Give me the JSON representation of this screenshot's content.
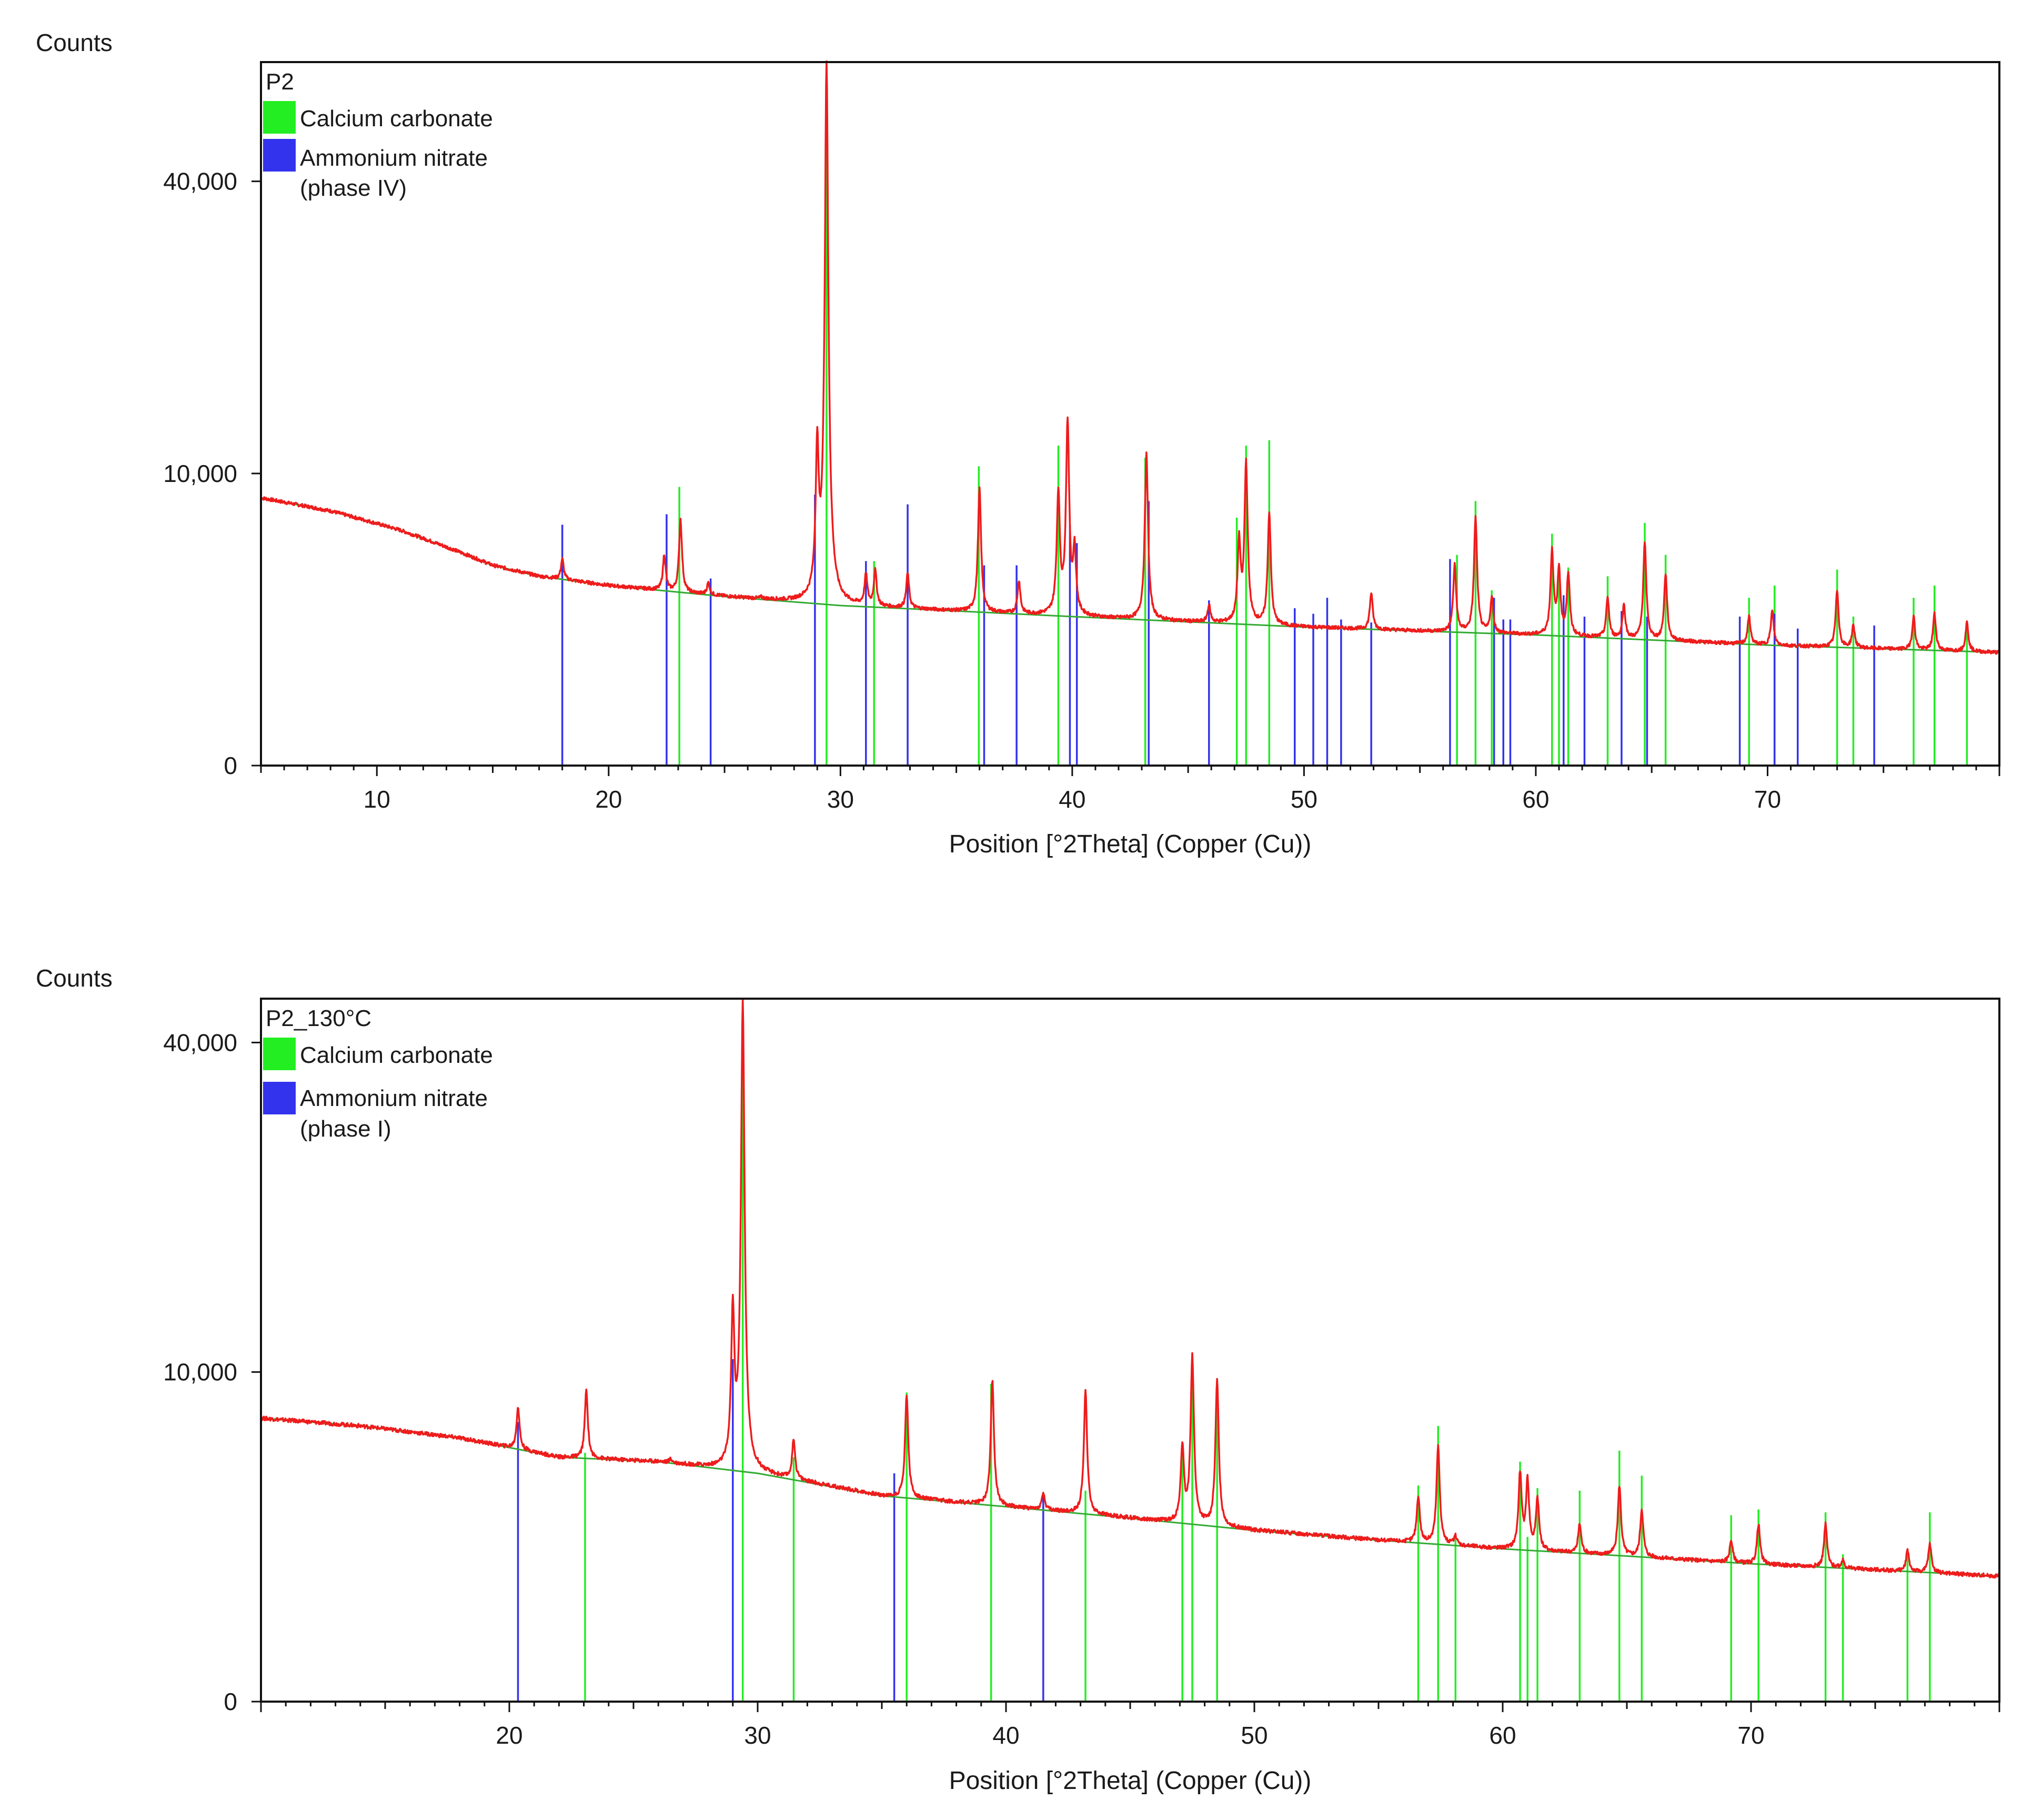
{
  "chart_data": [
    {
      "type": "line",
      "panel": "top",
      "title": "P2",
      "ylabel": "Counts",
      "xlabel": "Position [°2Theta] (Copper (Cu))",
      "xlim": [
        5,
        80
      ],
      "y_scale": "sqrt",
      "ylim": [
        0,
        58000
      ],
      "x_ticks": [
        10,
        20,
        30,
        40,
        50,
        60,
        70
      ],
      "y_ticks": [
        0,
        10000,
        40000
      ],
      "y_tick_labels": [
        "0",
        "10,000",
        "40,000"
      ],
      "legend": [
        {
          "label": "Calcium carbonate",
          "color": "#22ee22"
        },
        {
          "label": "Ammonium nitrate",
          "label2": "(phase IV)",
          "color": "#3333ee"
        }
      ],
      "background": [
        [
          5,
          8400
        ],
        [
          8,
          7600
        ],
        [
          11,
          6500
        ],
        [
          13,
          5600
        ],
        [
          15,
          4700
        ],
        [
          17,
          4200
        ],
        [
          20,
          3800
        ],
        [
          25,
          3350
        ],
        [
          30,
          3000
        ],
        [
          35,
          2800
        ],
        [
          40,
          2600
        ],
        [
          50,
          2250
        ],
        [
          60,
          2000
        ],
        [
          70,
          1700
        ],
        [
          80,
          1500
        ]
      ],
      "observed_peaks": [
        [
          18.0,
          5000
        ],
        [
          22.4,
          5200
        ],
        [
          23.1,
          7100
        ],
        [
          24.3,
          3900
        ],
        [
          26.6,
          3300
        ],
        [
          29.0,
          11700
        ],
        [
          29.4,
          58000
        ],
        [
          31.1,
          4200
        ],
        [
          31.5,
          4400
        ],
        [
          32.9,
          4300
        ],
        [
          36.0,
          9000
        ],
        [
          37.7,
          4000
        ],
        [
          39.4,
          8800
        ],
        [
          39.8,
          14000
        ],
        [
          40.1,
          5400
        ],
        [
          43.2,
          11400
        ],
        [
          45.9,
          3000
        ],
        [
          47.2,
          5900
        ],
        [
          47.5,
          10800
        ],
        [
          48.5,
          7500
        ],
        [
          52.9,
          3500
        ],
        [
          56.5,
          4700
        ],
        [
          57.4,
          7200
        ],
        [
          58.1,
          3300
        ],
        [
          60.7,
          5400
        ],
        [
          61.0,
          4500
        ],
        [
          61.4,
          4300
        ],
        [
          63.1,
          3300
        ],
        [
          63.8,
          3000
        ],
        [
          64.7,
          5800
        ],
        [
          65.6,
          4300
        ],
        [
          69.2,
          2600
        ],
        [
          70.2,
          2800
        ],
        [
          73.0,
          3600
        ],
        [
          73.7,
          2300
        ],
        [
          76.3,
          2600
        ],
        [
          77.2,
          2700
        ],
        [
          78.6,
          2400
        ]
      ],
      "reference_series": [
        {
          "name": "Calcium carbonate",
          "color": "#22ee22",
          "lines": [
            [
              23.05,
              9100
            ],
            [
              29.4,
              57000
            ],
            [
              31.45,
              4900
            ],
            [
              35.97,
              10500
            ],
            [
              39.4,
              12000
            ],
            [
              43.15,
              11100
            ],
            [
              47.1,
              7200
            ],
            [
              47.5,
              12000
            ],
            [
              48.5,
              12400
            ],
            [
              56.6,
              5200
            ],
            [
              57.4,
              8200
            ],
            [
              58.1,
              3600
            ],
            [
              60.7,
              6300
            ],
            [
              61.0,
              4600
            ],
            [
              61.4,
              4600
            ],
            [
              63.1,
              4200
            ],
            [
              64.7,
              6900
            ],
            [
              65.6,
              5200
            ],
            [
              69.2,
              3300
            ],
            [
              70.3,
              3800
            ],
            [
              73.0,
              4500
            ],
            [
              73.7,
              2600
            ],
            [
              76.3,
              3300
            ],
            [
              77.2,
              3800
            ],
            [
              78.6,
              2300
            ]
          ]
        },
        {
          "name": "Ammonium nitrate (phase IV)",
          "color": "#3333ee",
          "lines": [
            [
              18.0,
              6800
            ],
            [
              22.5,
              7400
            ],
            [
              24.4,
              4100
            ],
            [
              28.9,
              8600
            ],
            [
              31.1,
              4900
            ],
            [
              32.9,
              8000
            ],
            [
              36.2,
              4700
            ],
            [
              37.6,
              4700
            ],
            [
              39.9,
              6800
            ],
            [
              40.2,
              5800
            ],
            [
              43.3,
              8200
            ],
            [
              45.9,
              3200
            ],
            [
              49.6,
              2900
            ],
            [
              50.4,
              2700
            ],
            [
              51.0,
              3300
            ],
            [
              51.6,
              2500
            ],
            [
              52.9,
              2400
            ],
            [
              56.3,
              5000
            ],
            [
              58.2,
              3300
            ],
            [
              58.6,
              2500
            ],
            [
              58.9,
              2500
            ],
            [
              61.2,
              3400
            ],
            [
              62.1,
              2600
            ],
            [
              63.7,
              2800
            ],
            [
              64.8,
              2600
            ],
            [
              68.8,
              2600
            ],
            [
              70.3,
              2700
            ],
            [
              71.3,
              2200
            ],
            [
              74.6,
              2300
            ]
          ]
        }
      ]
    },
    {
      "type": "line",
      "panel": "bottom",
      "title": "P2_130°C",
      "ylabel": "Counts",
      "xlabel": "Position [°2Theta] (Copper (Cu))",
      "xlim": [
        10,
        80
      ],
      "y_scale": "sqrt",
      "ylim": [
        0,
        45500
      ],
      "x_ticks": [
        20,
        30,
        40,
        50,
        60,
        70
      ],
      "y_ticks": [
        0,
        10000,
        40000
      ],
      "y_tick_labels": [
        "0",
        "10,000",
        "40,000"
      ],
      "legend": [
        {
          "label": "Calcium carbonate",
          "color": "#22ee22"
        },
        {
          "label": "Ammonium nitrate",
          "label2": "(phase I)",
          "color": "#3333ee"
        }
      ],
      "background": [
        [
          10,
          7400
        ],
        [
          14,
          7000
        ],
        [
          18,
          6400
        ],
        [
          22,
          5500
        ],
        [
          26,
          5300
        ],
        [
          30,
          4800
        ],
        [
          35,
          3900
        ],
        [
          40,
          3500
        ],
        [
          45,
          3100
        ],
        [
          50,
          2700
        ],
        [
          55,
          2400
        ],
        [
          60,
          2150
        ],
        [
          65,
          1950
        ],
        [
          70,
          1750
        ],
        [
          75,
          1600
        ],
        [
          80,
          1450
        ]
      ],
      "observed_peaks": [
        [
          20.35,
          8000
        ],
        [
          23.1,
          8900
        ],
        [
          26.5,
          5400
        ],
        [
          29.0,
          14000
        ],
        [
          29.4,
          45000
        ],
        [
          31.45,
          6300
        ],
        [
          36.0,
          8700
        ],
        [
          39.45,
          9500
        ],
        [
          41.5,
          4000
        ],
        [
          43.2,
          8900
        ],
        [
          47.1,
          6000
        ],
        [
          47.5,
          11000
        ],
        [
          48.5,
          9500
        ],
        [
          56.6,
          3900
        ],
        [
          57.4,
          6000
        ],
        [
          58.1,
          2500
        ],
        [
          60.7,
          4800
        ],
        [
          61.0,
          4500
        ],
        [
          61.4,
          3800
        ],
        [
          63.1,
          2900
        ],
        [
          64.7,
          4300
        ],
        [
          65.6,
          3400
        ],
        [
          69.2,
          2400
        ],
        [
          70.3,
          2900
        ],
        [
          73.0,
          2900
        ],
        [
          73.7,
          1850
        ],
        [
          76.3,
          2100
        ],
        [
          77.2,
          2300
        ]
      ],
      "reference_series": [
        {
          "name": "Calcium carbonate",
          "color": "#22ee22",
          "lines": [
            [
              23.05,
              5700
            ],
            [
              29.4,
              45500
            ],
            [
              31.45,
              5500
            ],
            [
              36.0,
              8800
            ],
            [
              39.4,
              9300
            ],
            [
              43.2,
              4100
            ],
            [
              47.1,
              5800
            ],
            [
              47.5,
              10300
            ],
            [
              48.5,
              9200
            ],
            [
              56.6,
              4300
            ],
            [
              57.4,
              7000
            ],
            [
              58.1,
              2600
            ],
            [
              60.7,
              5300
            ],
            [
              61.0,
              2500
            ],
            [
              61.4,
              4200
            ],
            [
              63.1,
              4100
            ],
            [
              64.7,
              5800
            ],
            [
              65.6,
              4700
            ],
            [
              69.2,
              3200
            ],
            [
              70.3,
              3400
            ],
            [
              73.0,
              3300
            ],
            [
              73.7,
              2000
            ],
            [
              76.3,
              2000
            ],
            [
              77.2,
              3300
            ]
          ]
        },
        {
          "name": "Ammonium nitrate (phase I)",
          "color": "#3333ee",
          "lines": [
            [
              20.35,
              7200
            ],
            [
              29.0,
              10800
            ],
            [
              35.5,
              4800
            ],
            [
              41.5,
              4000
            ]
          ]
        }
      ]
    }
  ]
}
